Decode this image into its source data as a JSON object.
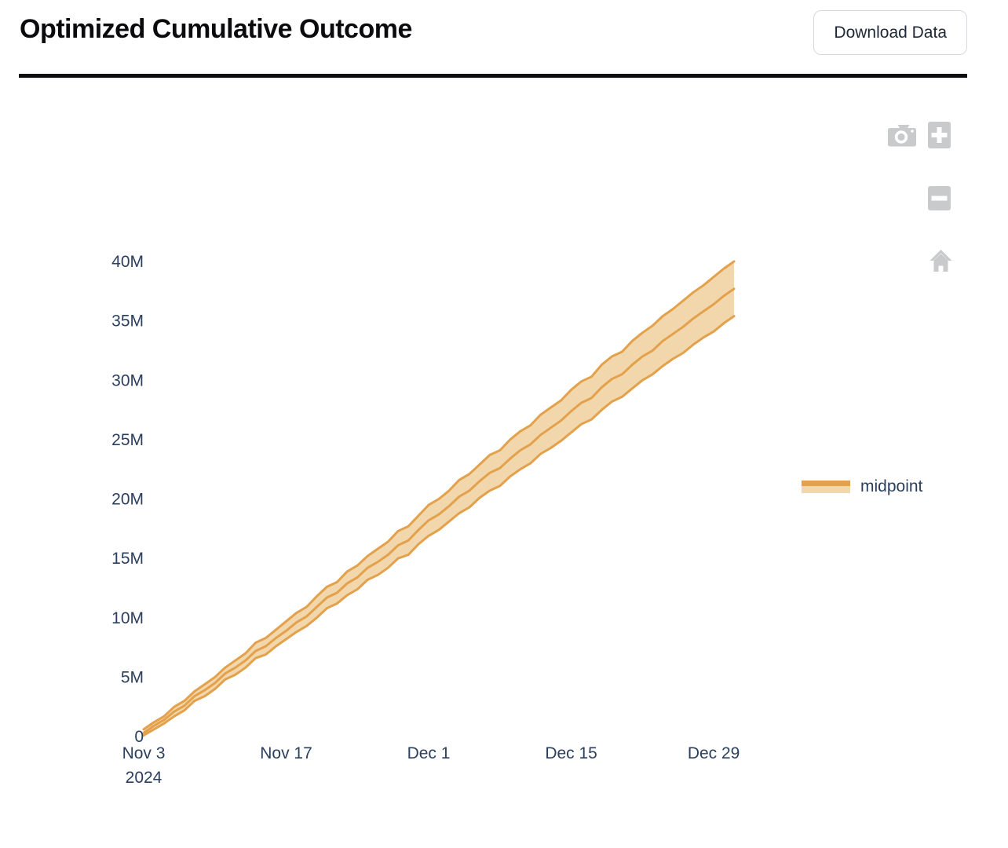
{
  "header": {
    "title": "Optimized Cumulative Outcome",
    "download_button_label": "Download Data"
  },
  "toolbar": {
    "icons": [
      "camera-icon",
      "zoom-in-icon",
      "zoom-out-icon",
      "home-icon"
    ]
  },
  "legend": {
    "items": [
      {
        "label": "midpoint"
      }
    ]
  },
  "colors": {
    "line": "#e3a14c",
    "band_fill": "#f2d7ac",
    "axis_text": "#2a3f5f",
    "icon": "#c9cacc",
    "divider": "#0d0d0f"
  },
  "chart_data": {
    "type": "area",
    "title": "Optimized Cumulative Outcome",
    "x_unit": "date",
    "start_date": "Nov 3, 2024",
    "end_date": "Dec 31, 2024",
    "interval_days": 1,
    "n_points": 59,
    "unit": "M",
    "ylim": [
      0,
      40
    ],
    "grid": false,
    "legend_position": "right",
    "y_ticks": [
      {
        "value": 0,
        "label": "0"
      },
      {
        "value": 5,
        "label": "5M"
      },
      {
        "value": 10,
        "label": "10M"
      },
      {
        "value": 15,
        "label": "15M"
      },
      {
        "value": 20,
        "label": "20M"
      },
      {
        "value": 25,
        "label": "25M"
      },
      {
        "value": 30,
        "label": "30M"
      },
      {
        "value": 35,
        "label": "35M"
      },
      {
        "value": 40,
        "label": "40M"
      }
    ],
    "x_ticks": [
      {
        "day": 0,
        "label": "Nov 3",
        "sublabel": "2024"
      },
      {
        "day": 14,
        "label": "Nov 17"
      },
      {
        "day": 28,
        "label": "Dec 1"
      },
      {
        "day": 42,
        "label": "Dec 15"
      },
      {
        "day": 56,
        "label": "Dec 29"
      }
    ],
    "series": [
      {
        "name": "midpoint",
        "role": "mid",
        "values": [
          0.3,
          0.9,
          1.4,
          2.1,
          2.6,
          3.4,
          3.9,
          4.5,
          5.3,
          5.8,
          6.4,
          7.2,
          7.6,
          8.3,
          8.9,
          9.6,
          10.1,
          10.9,
          11.7,
          12.1,
          12.9,
          13.4,
          14.2,
          14.7,
          15.3,
          16.1,
          16.5,
          17.4,
          18.2,
          18.7,
          19.4,
          20.2,
          20.7,
          21.5,
          22.2,
          22.6,
          23.4,
          24.1,
          24.6,
          25.4,
          26.0,
          26.6,
          27.4,
          28.1,
          28.5,
          29.4,
          30.1,
          30.5,
          31.3,
          32.0,
          32.5,
          33.3,
          33.9,
          34.5,
          35.2,
          35.8,
          36.4,
          37.1,
          37.7
        ]
      },
      {
        "name": "upper bound",
        "role": "band-upper",
        "values": [
          0.6,
          1.2,
          1.7,
          2.5,
          3.0,
          3.8,
          4.4,
          5.0,
          5.8,
          6.4,
          7.0,
          7.9,
          8.3,
          9.0,
          9.7,
          10.4,
          10.9,
          11.8,
          12.6,
          13.0,
          13.9,
          14.4,
          15.2,
          15.8,
          16.4,
          17.3,
          17.7,
          18.6,
          19.5,
          20.0,
          20.7,
          21.6,
          22.1,
          22.9,
          23.7,
          24.1,
          25.0,
          25.7,
          26.2,
          27.1,
          27.7,
          28.3,
          29.2,
          29.9,
          30.3,
          31.3,
          32.0,
          32.4,
          33.3,
          34.0,
          34.6,
          35.4,
          36.0,
          36.7,
          37.4,
          38.0,
          38.7,
          39.4,
          40.0
        ]
      },
      {
        "name": "lower bound",
        "role": "band-lower",
        "values": [
          0.1,
          0.6,
          1.1,
          1.7,
          2.2,
          3.0,
          3.4,
          4.0,
          4.8,
          5.2,
          5.8,
          6.6,
          6.9,
          7.6,
          8.2,
          8.8,
          9.3,
          10.0,
          10.8,
          11.2,
          11.9,
          12.4,
          13.2,
          13.6,
          14.2,
          15.0,
          15.3,
          16.2,
          16.9,
          17.4,
          18.1,
          18.8,
          19.3,
          20.1,
          20.7,
          21.1,
          21.9,
          22.5,
          23.0,
          23.8,
          24.3,
          24.9,
          25.6,
          26.3,
          26.7,
          27.5,
          28.2,
          28.6,
          29.3,
          30.0,
          30.5,
          31.2,
          31.8,
          32.3,
          33.0,
          33.6,
          34.1,
          34.8,
          35.4
        ]
      }
    ]
  }
}
